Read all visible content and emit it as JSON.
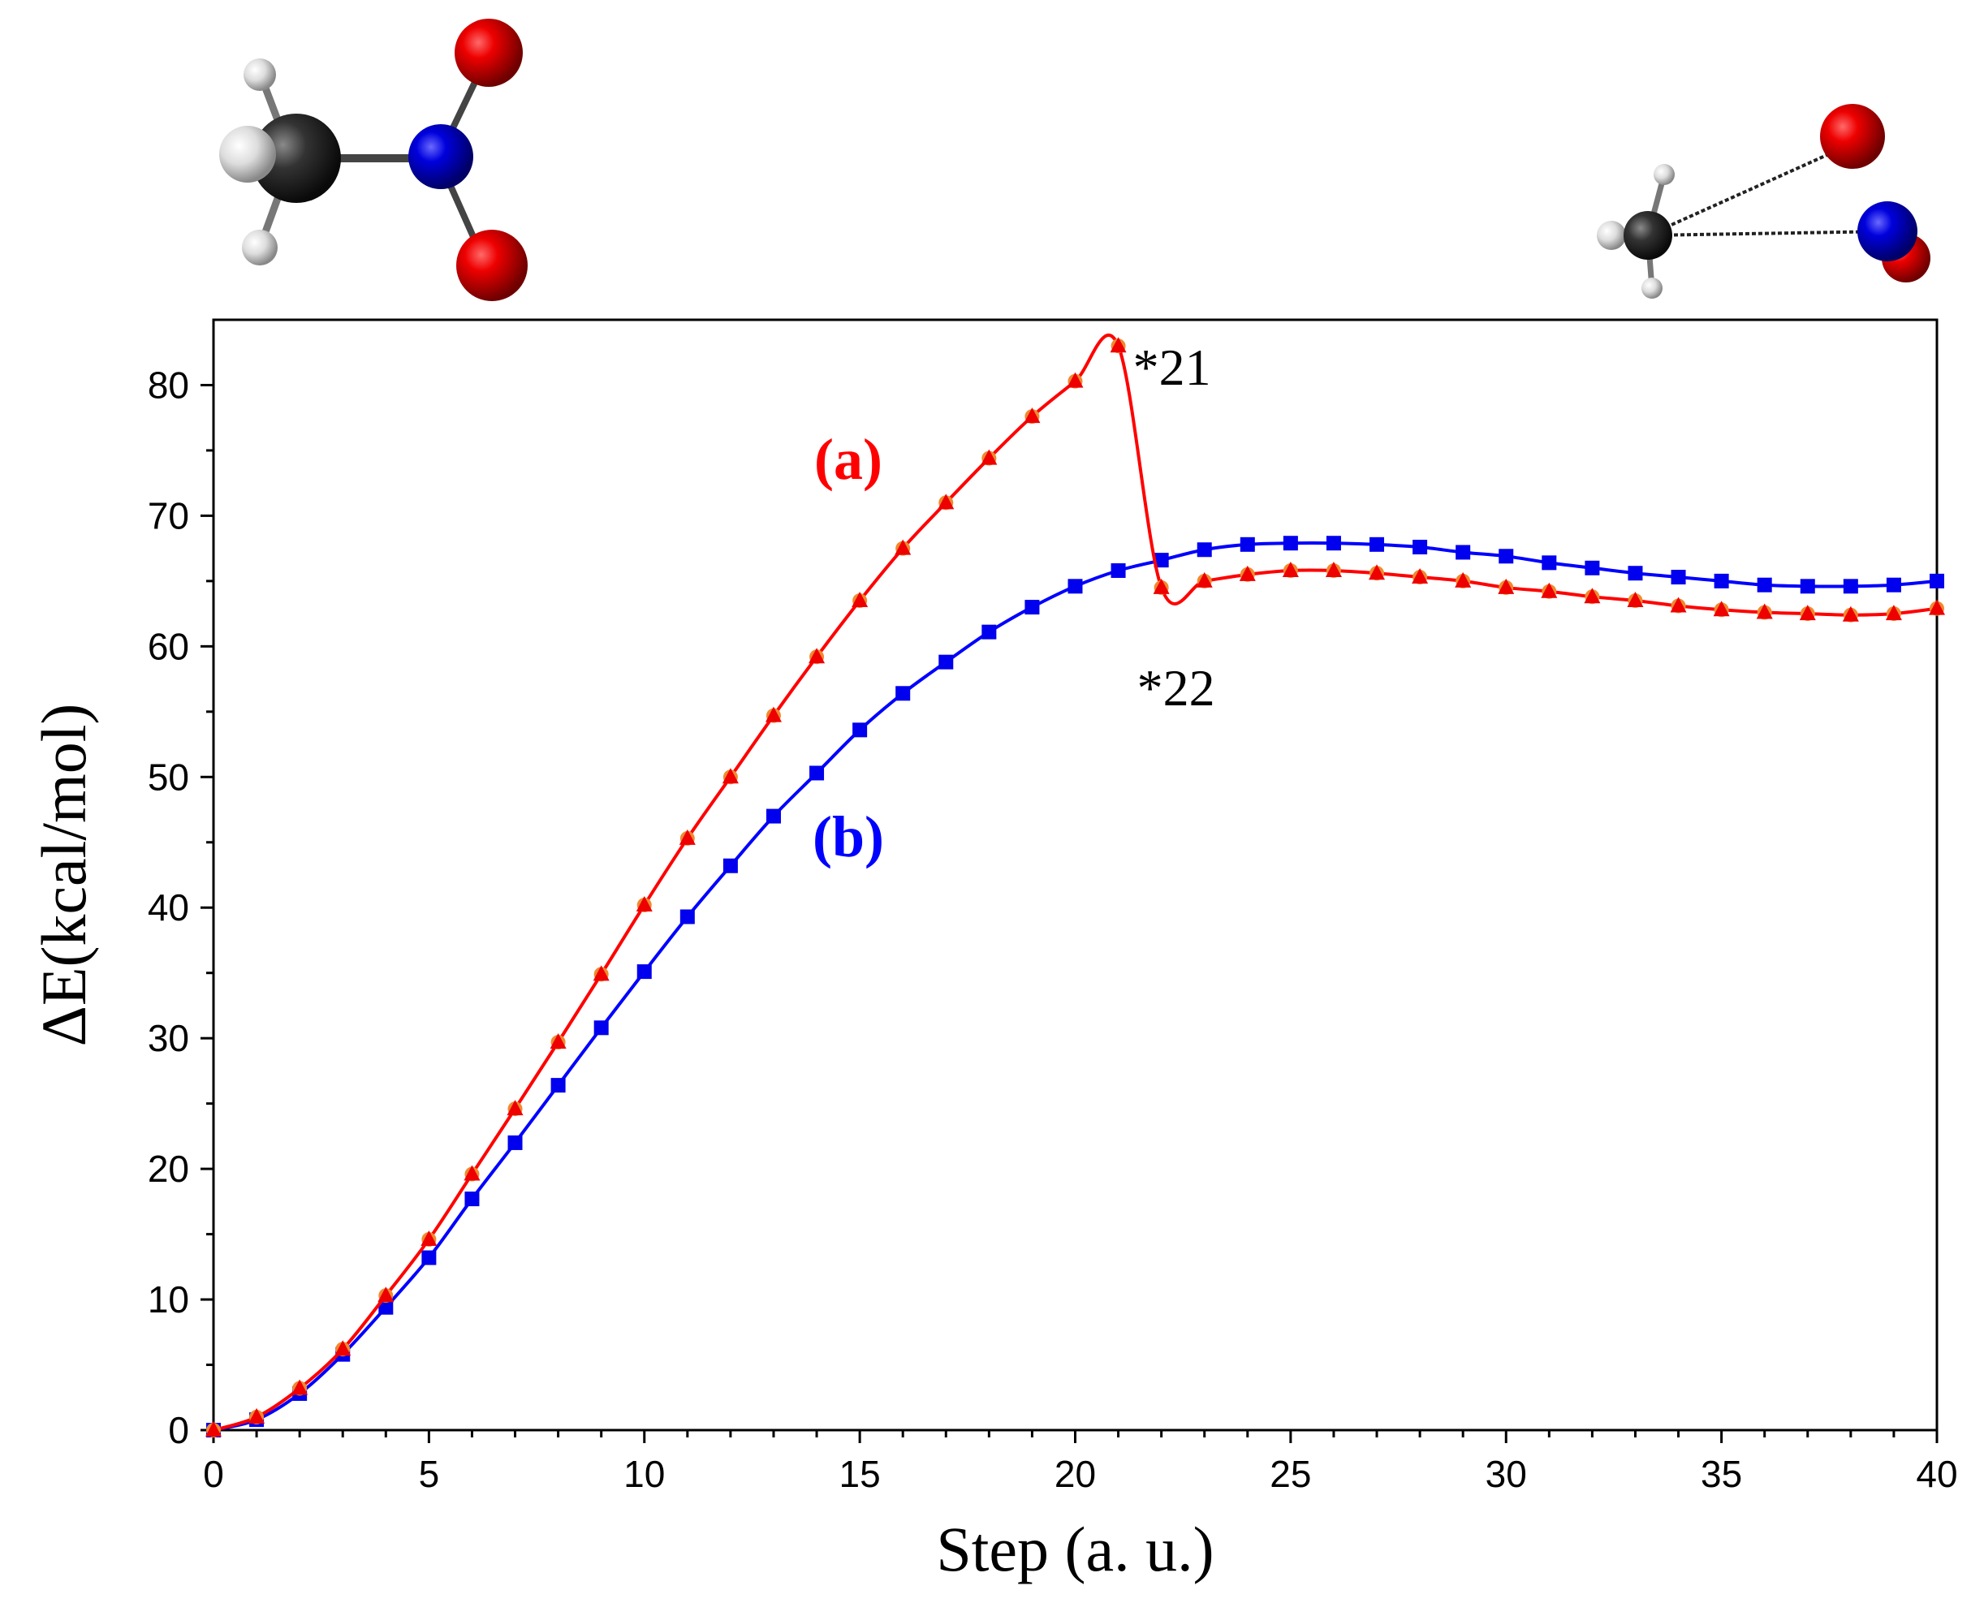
{
  "chart_data": {
    "type": "line",
    "xlabel": "Step (a. u.)",
    "ylabel": "ΔE(kcal/mol)",
    "xlim": [
      0,
      40
    ],
    "ylim": [
      0,
      85
    ],
    "xticks": [
      0,
      5,
      10,
      15,
      20,
      25,
      30,
      35,
      40
    ],
    "yticks": [
      0,
      10,
      20,
      30,
      40,
      50,
      60,
      70,
      80
    ],
    "grid": false,
    "legend": "none",
    "series": [
      {
        "name": "(a)",
        "color": "#ff0000",
        "marker_color": "#ee0000",
        "overlay_marker_color": "#f08a30",
        "x": [
          0,
          1,
          2,
          3,
          4,
          5,
          6,
          7,
          8,
          9,
          10,
          11,
          12,
          13,
          14,
          15,
          16,
          17,
          18,
          19,
          20,
          21,
          22,
          23,
          24,
          25,
          26,
          27,
          28,
          29,
          30,
          31,
          32,
          33,
          34,
          35,
          36,
          37,
          38,
          39,
          40
        ],
        "values": [
          0,
          1,
          3.2,
          6.2,
          10.3,
          14.6,
          19.6,
          24.6,
          29.7,
          34.9,
          40.2,
          45.3,
          50.0,
          54.7,
          59.2,
          63.5,
          67.5,
          71.0,
          74.4,
          77.6,
          80.3,
          83.0,
          64.5,
          65.0,
          65.5,
          65.8,
          65.8,
          65.6,
          65.3,
          65.0,
          64.5,
          64.2,
          63.8,
          63.5,
          63.1,
          62.8,
          62.6,
          62.5,
          62.4,
          62.5,
          62.9
        ]
      },
      {
        "name": "(b)",
        "color": "#0000ff",
        "marker_color": "#0000ee",
        "overlay_marker_color": "#3a8fa0",
        "x": [
          0,
          1,
          2,
          3,
          4,
          5,
          6,
          7,
          8,
          9,
          10,
          11,
          12,
          13,
          14,
          15,
          16,
          17,
          18,
          19,
          20,
          21,
          22,
          23,
          24,
          25,
          26,
          27,
          28,
          29,
          30,
          31,
          32,
          33,
          34,
          35,
          36,
          37,
          38,
          39,
          40
        ],
        "values": [
          0,
          0.8,
          2.8,
          5.8,
          9.4,
          13.2,
          17.7,
          22.0,
          26.4,
          30.8,
          35.1,
          39.3,
          43.2,
          47.0,
          50.3,
          53.6,
          56.4,
          58.8,
          61.1,
          63.0,
          64.6,
          65.8,
          66.6,
          67.4,
          67.8,
          67.9,
          67.9,
          67.8,
          67.6,
          67.2,
          66.9,
          66.4,
          66.0,
          65.6,
          65.3,
          65.0,
          64.7,
          64.6,
          64.6,
          64.7,
          65.0
        ]
      }
    ],
    "annotations": [
      {
        "text": "*21",
        "x": 21,
        "y": 83.0
      },
      {
        "text": "*22",
        "x": 22,
        "y": 64.5
      }
    ]
  }
}
